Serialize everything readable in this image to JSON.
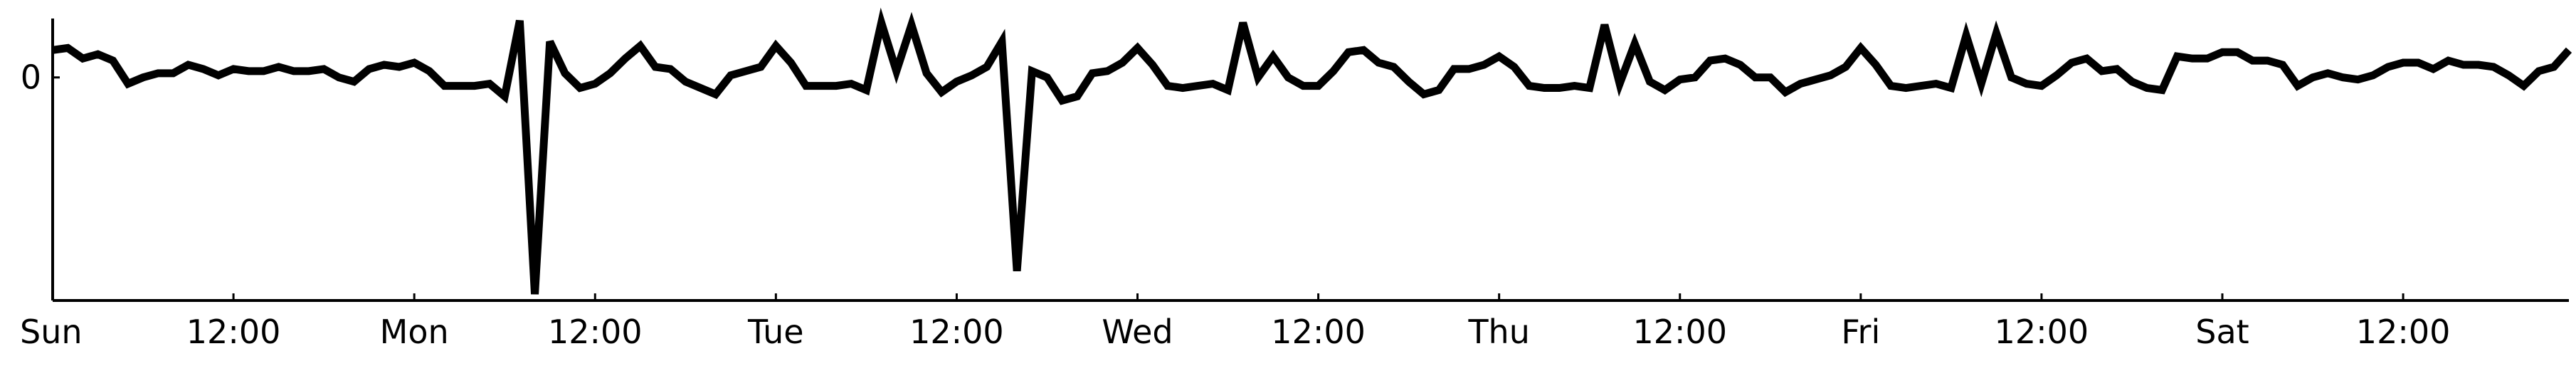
{
  "chart_data": {
    "type": "line",
    "title": "",
    "xlabel": "",
    "ylabel": "",
    "x_unit": "hours since start of week (Sun 00:00)",
    "xlim": [
      0,
      167
    ],
    "ylim": [
      -10.6,
      2.8
    ],
    "grid": false,
    "legend": "none",
    "colors": {
      "line": "#000000",
      "axis": "#000000",
      "background": "#ffffff"
    },
    "x_ticks": [
      {
        "x": 0,
        "label": "Sun"
      },
      {
        "x": 12,
        "label": "12:00"
      },
      {
        "x": 24,
        "label": "Mon"
      },
      {
        "x": 36,
        "label": "12:00"
      },
      {
        "x": 48,
        "label": "Tue"
      },
      {
        "x": 60,
        "label": "12:00"
      },
      {
        "x": 72,
        "label": "Wed"
      },
      {
        "x": 84,
        "label": "12:00"
      },
      {
        "x": 96,
        "label": "Thu"
      },
      {
        "x": 108,
        "label": "12:00"
      },
      {
        "x": 120,
        "label": "Fri"
      },
      {
        "x": 132,
        "label": "12:00"
      },
      {
        "x": 144,
        "label": "Sat"
      },
      {
        "x": 156,
        "label": "12:00"
      }
    ],
    "y_ticks": [
      {
        "y": 0,
        "label": "0"
      }
    ],
    "series": [
      {
        "values": [
          1.3,
          1.4,
          0.9,
          1.1,
          0.8,
          -0.3,
          0.0,
          0.2,
          0.2,
          0.6,
          0.4,
          0.1,
          0.4,
          0.3,
          0.3,
          0.5,
          0.3,
          0.3,
          0.4,
          0.0,
          -0.2,
          0.4,
          0.6,
          0.5,
          0.7,
          0.3,
          -0.4,
          -0.4,
          -0.4,
          -0.3,
          -0.9,
          2.7,
          -10.3,
          1.7,
          0.2,
          -0.5,
          -0.3,
          0.2,
          0.9,
          1.5,
          0.5,
          0.4,
          -0.2,
          -0.5,
          -0.8,
          0.1,
          0.3,
          0.5,
          1.5,
          0.7,
          -0.4,
          -0.4,
          -0.4,
          -0.3,
          -0.6,
          2.6,
          0.3,
          2.5,
          0.2,
          -0.7,
          -0.2,
          0.1,
          0.5,
          1.7,
          -9.2,
          0.3,
          0.0,
          -1.1,
          -0.9,
          0.2,
          0.3,
          0.7,
          1.4,
          0.6,
          -0.4,
          -0.5,
          -0.4,
          -0.3,
          -0.6,
          2.6,
          0.0,
          1.0,
          0.0,
          -0.4,
          -0.4,
          0.3,
          1.2,
          1.3,
          0.7,
          0.5,
          -0.2,
          -0.8,
          -0.6,
          0.4,
          0.4,
          0.6,
          1.0,
          0.5,
          -0.4,
          -0.5,
          -0.5,
          -0.4,
          -0.5,
          2.5,
          -0.3,
          1.6,
          -0.2,
          -0.6,
          -0.1,
          0.0,
          0.8,
          0.9,
          0.6,
          0.0,
          0.0,
          -0.7,
          -0.3,
          -0.1,
          0.1,
          0.5,
          1.4,
          0.6,
          -0.4,
          -0.5,
          -0.4,
          -0.3,
          -0.5,
          2.0,
          -0.3,
          2.1,
          0.0,
          -0.3,
          -0.4,
          0.1,
          0.7,
          0.9,
          0.3,
          0.4,
          -0.2,
          -0.5,
          -0.6,
          1.0,
          0.9,
          0.9,
          1.2,
          1.2,
          0.8,
          0.8,
          0.6,
          -0.4,
          0.0,
          0.2,
          0.0,
          -0.1,
          0.1,
          0.5,
          0.7,
          0.7,
          0.4,
          0.8,
          0.6,
          0.6,
          0.5,
          0.1,
          -0.4,
          0.3,
          0.5,
          1.3
        ]
      }
    ]
  }
}
